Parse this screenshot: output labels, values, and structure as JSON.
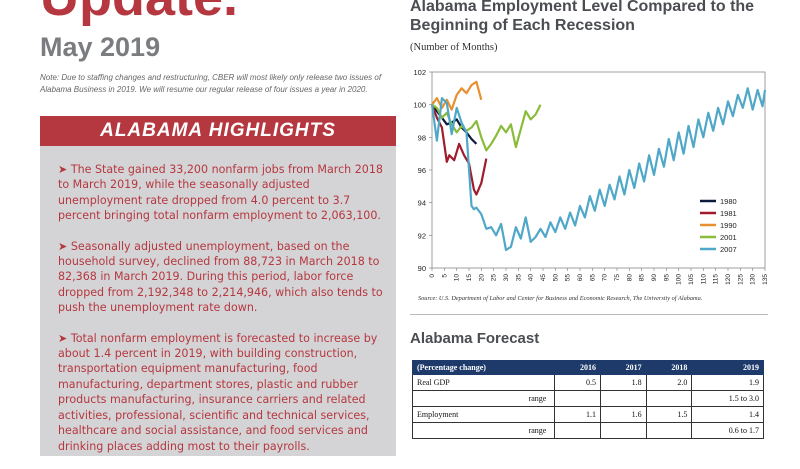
{
  "header": {
    "title": "Update.",
    "date": "May 2019",
    "note": "Note:  Due to staffing changes and restructuring, CBER will most likely only release two issues of Alabama Business in 2019. We will resume our regular release of four issues a year in 2020."
  },
  "highlights": {
    "title": "ALABAMA HIGHLIGHTS",
    "items": [
      "➤ The State gained 33,200 nonfarm jobs from March 2018 to March 2019, while the seasonally adjusted unemployment rate dropped from 4.0 percent to 3.7 percent bringing total nonfarm employment to 2,063,100.",
      "➤ Seasonally adjusted unemployment, based on the household survey, declined from 88,723 in March 2018 to 82,368 in March 2019.  During this period, labor force dropped from 2,192,348 to 2,214,946, which also tends to push the unemployment rate down.",
      "➤ Total nonfarm employment is forecasted to increase by about 1.4 percent in 2019, with building construction, transportation equipment manufacturing, food manufacturing, department stores, plastic and rubber products manufacturing, insurance carriers and related activities, professional, scientific and technical services, healthcare and social assistance, and food services and drinking places adding most to their payrolls."
    ]
  },
  "chart_data": {
    "type": "line",
    "title": "Alabama Employment Level Compared to the Beginning of Each Recession",
    "subtitle": "(Number of Months)",
    "source": "Source: U.S. Department of Labor and Center for Business and Economic Research, The University of Alabama.",
    "xlabel": "",
    "ylabel": "",
    "xlim": [
      0,
      135
    ],
    "ylim": [
      90,
      102
    ],
    "xticks": [
      0,
      5,
      10,
      15,
      20,
      25,
      30,
      35,
      40,
      45,
      50,
      55,
      60,
      65,
      70,
      75,
      80,
      85,
      90,
      95,
      100,
      105,
      110,
      115,
      120,
      125,
      130,
      135
    ],
    "yticks": [
      90,
      92,
      94,
      96,
      98,
      100,
      102
    ],
    "grid": false,
    "legend": "bottom-right",
    "series": [
      {
        "name": "1980",
        "color": "#0d1b3e",
        "x": [
          0,
          2,
          4,
          6,
          8,
          10,
          12,
          14,
          16,
          18
        ],
        "y": [
          100,
          99.6,
          99.2,
          98.8,
          98.9,
          99.1,
          98.6,
          98.3,
          97.9,
          97.6
        ]
      },
      {
        "name": "1981",
        "color": "#a01c2c",
        "x": [
          0,
          2,
          4,
          6,
          7,
          9,
          11,
          13,
          15,
          17,
          18,
          20,
          22
        ],
        "y": [
          100,
          99.2,
          98.6,
          96.5,
          96.9,
          96.6,
          97.6,
          96.9,
          96.4,
          94.8,
          94.5,
          95.2,
          96.7
        ]
      },
      {
        "name": "1990",
        "color": "#e8902e",
        "x": [
          0,
          2,
          4,
          6,
          8,
          10,
          12,
          14,
          16,
          18,
          20
        ],
        "y": [
          100,
          100.4,
          99.8,
          100.3,
          99.7,
          100.6,
          101.0,
          100.7,
          101.2,
          101.4,
          100.3
        ]
      },
      {
        "name": "2001",
        "color": "#8bbb3b",
        "x": [
          0,
          2,
          4,
          6,
          8,
          10,
          12,
          14,
          16,
          18,
          20,
          22,
          24,
          26,
          28,
          30,
          32,
          34,
          36,
          38,
          40,
          42,
          44
        ],
        "y": [
          100,
          99.8,
          99.2,
          99.5,
          98.8,
          98.3,
          98.7,
          98.4,
          98.6,
          99.0,
          98.0,
          97.2,
          97.6,
          98.1,
          98.7,
          98.3,
          98.8,
          97.4,
          98.5,
          99.6,
          99.1,
          99.4,
          100.0
        ]
      },
      {
        "name": "2007",
        "color": "#4fa8c8",
        "x": [
          0,
          2,
          4,
          6,
          8,
          10,
          12,
          14,
          16,
          17,
          18,
          20,
          22,
          24,
          26,
          28,
          30,
          32,
          34,
          36,
          38,
          40,
          42,
          44,
          46,
          48,
          50,
          52,
          54,
          56,
          58,
          60,
          62,
          64,
          66,
          68,
          70,
          72,
          74,
          76,
          78,
          80,
          82,
          84,
          86,
          88,
          90,
          92,
          94,
          96,
          98,
          100,
          102,
          104,
          106,
          108,
          110,
          112,
          114,
          116,
          118,
          120,
          122,
          124,
          126,
          128,
          130,
          132,
          134,
          135
        ],
        "y": [
          100,
          97.8,
          100.4,
          100.1,
          98.2,
          99.8,
          98.9,
          98.3,
          93.8,
          93.6,
          93.7,
          93.3,
          92.4,
          92.5,
          92.0,
          92.7,
          91.1,
          91.3,
          92.5,
          91.8,
          93.1,
          91.6,
          91.9,
          92.4,
          91.9,
          92.8,
          92.2,
          93.1,
          92.4,
          93.4,
          92.6,
          93.8,
          93.1,
          94.4,
          93.5,
          94.8,
          93.8,
          95.1,
          94.2,
          95.6,
          94.5,
          96.0,
          94.9,
          96.4,
          95.3,
          96.9,
          95.7,
          97.3,
          96.2,
          97.9,
          96.6,
          98.3,
          97.0,
          98.7,
          97.4,
          99.1,
          98.0,
          99.5,
          98.4,
          99.8,
          98.8,
          100.2,
          99.3,
          100.6,
          99.8,
          101.0,
          99.7,
          100.9,
          99.9,
          100.9
        ]
      }
    ]
  },
  "forecast": {
    "title": "Alabama Forecast",
    "headers": [
      "(Percentage change)",
      "2016",
      "2017",
      "2018",
      "2019"
    ],
    "rows": [
      [
        "Real GDP",
        "0.5",
        "1.8",
        "2.0",
        "1.9"
      ],
      [
        "range",
        "",
        "",
        "",
        "1.5 to 3.0"
      ],
      [
        "Employment",
        "1.1",
        "1.6",
        "1.5",
        "1.4"
      ],
      [
        "range",
        "",
        "",
        "",
        "0.6 to 1.7"
      ]
    ]
  }
}
